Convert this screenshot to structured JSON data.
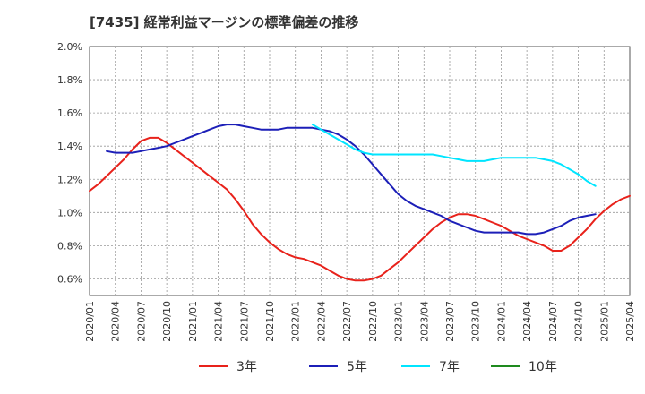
{
  "chart_data": {
    "type": "line",
    "title": "[7435]  経常利益マージンの標準偏差の推移",
    "xlabel": "",
    "ylabel": "",
    "ylim": [
      0.5,
      2.0
    ],
    "y_ticks": [
      "0.6%",
      "0.8%",
      "1.0%",
      "1.2%",
      "1.4%",
      "1.6%",
      "1.8%",
      "2.0%"
    ],
    "x_ticks": [
      "2020/01",
      "2020/04",
      "2020/07",
      "2020/10",
      "2021/01",
      "2021/04",
      "2021/07",
      "2021/10",
      "2022/01",
      "2022/04",
      "2022/07",
      "2022/10",
      "2023/01",
      "2023/04",
      "2023/07",
      "2023/10",
      "2024/01",
      "2024/04",
      "2024/07",
      "2024/10",
      "2025/01",
      "2025/04"
    ],
    "grid": true,
    "legend_position": "bottom",
    "series": [
      {
        "name": "3年",
        "color": "#e8221b",
        "start": "2020/01",
        "values": [
          1.13,
          1.17,
          1.22,
          1.27,
          1.32,
          1.38,
          1.43,
          1.45,
          1.45,
          1.42,
          1.38,
          1.34,
          1.3,
          1.26,
          1.22,
          1.18,
          1.14,
          1.08,
          1.01,
          0.93,
          0.87,
          0.82,
          0.78,
          0.75,
          0.73,
          0.72,
          0.7,
          0.68,
          0.65,
          0.62,
          0.6,
          0.59,
          0.59,
          0.6,
          0.62,
          0.66,
          0.7,
          0.75,
          0.8,
          0.85,
          0.9,
          0.94,
          0.97,
          0.99,
          0.99,
          0.98,
          0.96,
          0.94,
          0.92,
          0.89,
          0.86,
          0.84,
          0.82,
          0.8,
          0.77,
          0.77,
          0.8,
          0.85,
          0.9,
          0.96,
          1.01,
          1.05,
          1.08,
          1.1
        ]
      },
      {
        "name": "5年",
        "color": "#1c1fb8",
        "start": "2020/03",
        "values": [
          1.37,
          1.36,
          1.36,
          1.36,
          1.37,
          1.38,
          1.39,
          1.4,
          1.42,
          1.44,
          1.46,
          1.48,
          1.5,
          1.52,
          1.53,
          1.53,
          1.52,
          1.51,
          1.5,
          1.5,
          1.5,
          1.51,
          1.51,
          1.51,
          1.51,
          1.5,
          1.49,
          1.47,
          1.44,
          1.4,
          1.35,
          1.29,
          1.23,
          1.17,
          1.11,
          1.07,
          1.04,
          1.02,
          1.0,
          0.98,
          0.95,
          0.93,
          0.91,
          0.89,
          0.88,
          0.88,
          0.88,
          0.88,
          0.88,
          0.87,
          0.87,
          0.88,
          0.9,
          0.92,
          0.95,
          0.97,
          0.98,
          0.99
        ]
      },
      {
        "name": "7年",
        "color": "#00e5ff",
        "start": "2022/03",
        "values": [
          1.53,
          1.5,
          1.47,
          1.44,
          1.41,
          1.38,
          1.36,
          1.35,
          1.35,
          1.35,
          1.35,
          1.35,
          1.35,
          1.35,
          1.35,
          1.34,
          1.33,
          1.32,
          1.31,
          1.31,
          1.31,
          1.32,
          1.33,
          1.33,
          1.33,
          1.33,
          1.33,
          1.32,
          1.31,
          1.29,
          1.26,
          1.23,
          1.19,
          1.16
        ]
      },
      {
        "name": "10年",
        "color": "#1e8a1e",
        "start": "",
        "values": []
      }
    ]
  }
}
